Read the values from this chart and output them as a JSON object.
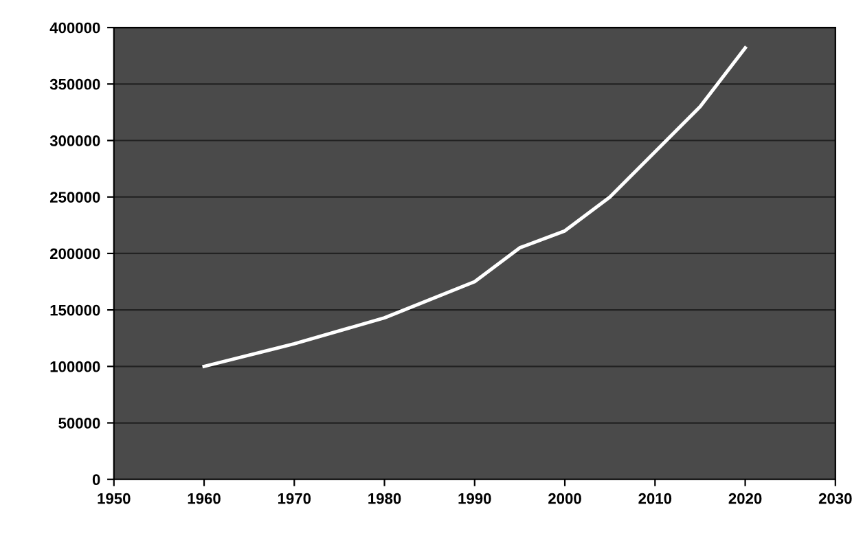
{
  "chart_data": {
    "type": "line",
    "x": [
      1960,
      1970,
      1980,
      1990,
      1995,
      2000,
      2005,
      2010,
      2015,
      2020
    ],
    "series": [
      {
        "color": "#ffffff",
        "values": [
          100000,
          120000,
          143000,
          175000,
          205000,
          220000,
          250000,
          290000,
          330000,
          382000
        ]
      }
    ],
    "xlim": [
      1950,
      2030
    ],
    "xticks": [
      1950,
      1960,
      1970,
      1980,
      1990,
      2000,
      2010,
      2020,
      2030
    ],
    "ylim": [
      0,
      400000
    ],
    "yticks": [
      0,
      50000,
      100000,
      150000,
      200000,
      250000,
      300000,
      350000,
      400000
    ],
    "grid": "y",
    "legend": false,
    "marker": "none",
    "line_style": "solid"
  }
}
